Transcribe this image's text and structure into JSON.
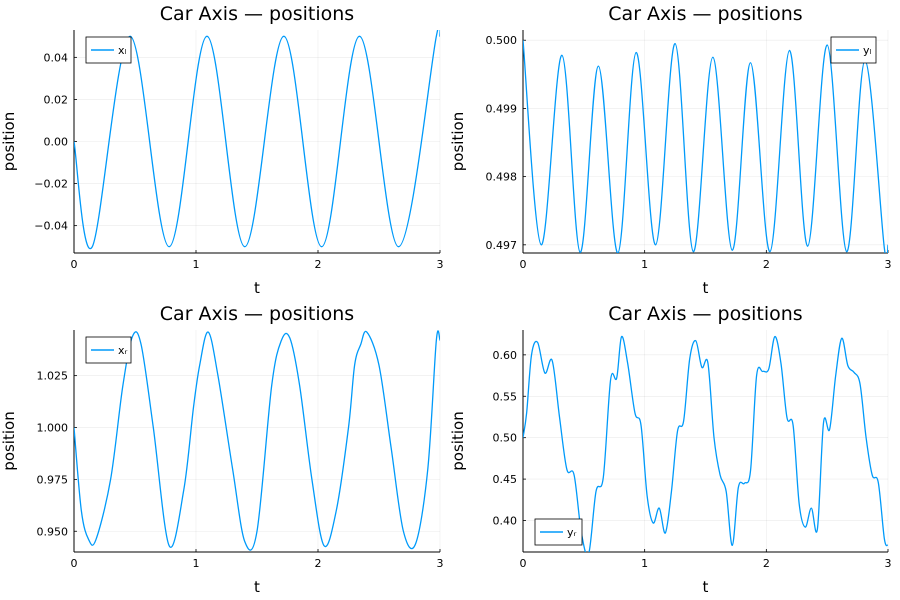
{
  "chart_data": [
    {
      "type": "line",
      "title": "Car Axis — positions",
      "xlabel": "t",
      "ylabel": "position",
      "xlim": [
        0,
        3
      ],
      "ylim": [
        -0.053,
        0.053
      ],
      "xticks": [
        0,
        1,
        2,
        3
      ],
      "xtick_labels": [
        "0",
        "1",
        "2",
        "3"
      ],
      "yticks": [
        -0.04,
        -0.02,
        0.0,
        0.02,
        0.04
      ],
      "ytick_labels": [
        "−0.04",
        "−0.02",
        "0.00",
        "0.02",
        "0.04"
      ],
      "grid": true,
      "legend_position": "top-left",
      "series": [
        {
          "name": "xₗ",
          "color": "#009AFA",
          "x": [
            0,
            0.15,
            0.46,
            0.78,
            1.09,
            1.4,
            1.72,
            2.03,
            2.34,
            2.66,
            2.97,
            3.0
          ],
          "y": [
            0.0,
            -0.05,
            0.05,
            -0.05,
            0.05,
            -0.05,
            0.05,
            -0.05,
            0.05,
            -0.05,
            0.05,
            0.05
          ]
        }
      ]
    },
    {
      "type": "line",
      "title": "Car Axis — positions",
      "xlabel": "t",
      "ylabel": "position",
      "xlim": [
        0,
        3
      ],
      "ylim": [
        0.49688,
        0.50015
      ],
      "xticks": [
        0,
        1,
        2,
        3
      ],
      "xtick_labels": [
        "0",
        "1",
        "2",
        "3"
      ],
      "yticks": [
        0.497,
        0.498,
        0.499,
        0.5
      ],
      "ytick_labels": [
        "0.497",
        "0.498",
        "0.499",
        "0.500"
      ],
      "grid": true,
      "legend_position": "top-right",
      "series": [
        {
          "name": "yₗ",
          "color": "#009AFA",
          "x": [
            0,
            0.15,
            0.32,
            0.47,
            0.62,
            0.78,
            0.93,
            1.09,
            1.25,
            1.4,
            1.56,
            1.72,
            1.87,
            2.03,
            2.19,
            2.34,
            2.5,
            2.66,
            2.81,
            2.97,
            3.0
          ],
          "y": [
            0.5,
            0.497,
            0.49978,
            0.49689,
            0.49962,
            0.49688,
            0.49982,
            0.497,
            0.49995,
            0.4969,
            0.49975,
            0.49692,
            0.49967,
            0.4969,
            0.49985,
            0.49698,
            0.49993,
            0.4969,
            0.4997,
            0.49695,
            0.497
          ]
        }
      ]
    },
    {
      "type": "line",
      "title": "Car Axis — positions",
      "xlabel": "t",
      "ylabel": "position",
      "xlim": [
        0,
        3
      ],
      "ylim": [
        0.94,
        1.047
      ],
      "xticks": [
        0,
        1,
        2,
        3
      ],
      "xtick_labels": [
        "0",
        "1",
        "2",
        "3"
      ],
      "yticks": [
        0.95,
        0.975,
        1.0,
        1.025
      ],
      "ytick_labels": [
        "0.950",
        "0.975",
        "1.000",
        "1.025"
      ],
      "grid": true,
      "legend_position": "top-left",
      "series": [
        {
          "name": "xᵣ",
          "color": "#009AFA",
          "x": [
            0,
            0.06,
            0.12,
            0.18,
            0.3,
            0.4,
            0.48,
            0.55,
            0.65,
            0.78,
            0.9,
            0.98,
            1.03,
            1.1,
            1.18,
            1.3,
            1.4,
            1.5,
            1.62,
            1.7,
            1.77,
            1.85,
            1.95,
            2.05,
            2.15,
            2.25,
            2.3,
            2.35,
            2.4,
            2.5,
            2.6,
            2.7,
            2.8,
            2.9,
            2.97,
            3.0
          ],
          "y": [
            1.0,
            0.96,
            0.946,
            0.946,
            0.975,
            1.02,
            1.044,
            1.04,
            1.0,
            0.943,
            0.97,
            1.01,
            1.03,
            1.046,
            1.025,
            0.98,
            0.945,
            0.95,
            1.02,
            1.042,
            1.043,
            1.02,
            0.975,
            0.943,
            0.96,
            1.0,
            1.03,
            1.04,
            1.046,
            1.03,
            0.99,
            0.95,
            0.944,
            0.98,
            1.042,
            1.042
          ]
        }
      ]
    },
    {
      "type": "line",
      "title": "Car Axis — positions",
      "xlabel": "t",
      "ylabel": "position",
      "xlim": [
        0,
        3
      ],
      "ylim": [
        0.362,
        0.63
      ],
      "xticks": [
        0,
        1,
        2,
        3
      ],
      "xtick_labels": [
        "0",
        "1",
        "2",
        "3"
      ],
      "yticks": [
        0.4,
        0.45,
        0.5,
        0.55,
        0.6
      ],
      "ytick_labels": [
        "0.40",
        "0.45",
        "0.50",
        "0.55",
        "0.60"
      ],
      "grid": true,
      "legend_position": "bottom-left",
      "series": [
        {
          "name": "yᵣ",
          "color": "#009AFA",
          "x": [
            0,
            0.03,
            0.07,
            0.12,
            0.18,
            0.24,
            0.3,
            0.36,
            0.42,
            0.48,
            0.54,
            0.6,
            0.66,
            0.72,
            0.77,
            0.81,
            0.86,
            0.92,
            0.97,
            1.02,
            1.07,
            1.12,
            1.17,
            1.22,
            1.27,
            1.32,
            1.37,
            1.42,
            1.47,
            1.52,
            1.57,
            1.62,
            1.67,
            1.72,
            1.77,
            1.82,
            1.87,
            1.92,
            1.97,
            2.02,
            2.07,
            2.12,
            2.17,
            2.22,
            2.27,
            2.32,
            2.37,
            2.42,
            2.47,
            2.52,
            2.57,
            2.62,
            2.67,
            2.72,
            2.77,
            2.82,
            2.87,
            2.92,
            2.97,
            3.0
          ],
          "y": [
            0.5,
            0.53,
            0.6,
            0.615,
            0.578,
            0.593,
            0.525,
            0.462,
            0.455,
            0.385,
            0.36,
            0.435,
            0.452,
            0.57,
            0.572,
            0.622,
            0.59,
            0.53,
            0.515,
            0.43,
            0.397,
            0.415,
            0.385,
            0.435,
            0.508,
            0.52,
            0.595,
            0.617,
            0.585,
            0.59,
            0.5,
            0.455,
            0.435,
            0.37,
            0.44,
            0.445,
            0.46,
            0.575,
            0.58,
            0.583,
            0.622,
            0.59,
            0.524,
            0.515,
            0.42,
            0.392,
            0.415,
            0.39,
            0.518,
            0.51,
            0.575,
            0.62,
            0.587,
            0.579,
            0.565,
            0.5,
            0.455,
            0.446,
            0.378,
            0.37
          ]
        }
      ]
    }
  ]
}
